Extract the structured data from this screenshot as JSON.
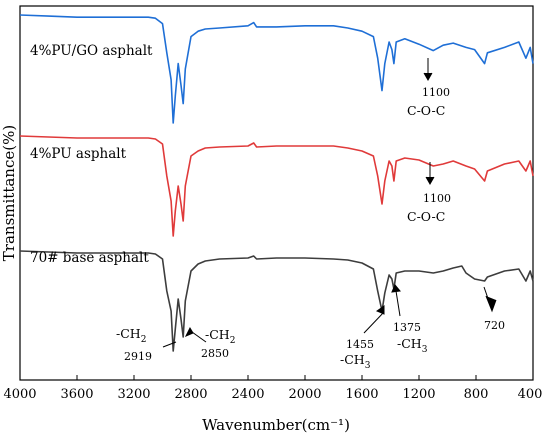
{
  "chart_data": {
    "type": "line",
    "xlabel": "Wavenumber(cm⁻¹)",
    "ylabel": "Transmittance(%)",
    "xlim": [
      4000,
      400
    ],
    "x_reversed": true,
    "x_ticks": [
      "4000",
      "3600",
      "3200",
      "2800",
      "2400",
      "2000",
      "1600",
      "1200",
      "800",
      "400"
    ],
    "y_ticks_visible": false,
    "grid": false,
    "legend": "none (labels placed on curves)",
    "series": [
      {
        "name": "4%PU/GO asphalt",
        "color": "#1f6fd6",
        "offset": 2,
        "points": [
          [
            4000,
            0.0
          ],
          [
            3800,
            0.01
          ],
          [
            3600,
            0.02
          ],
          [
            3400,
            0.02
          ],
          [
            3200,
            0.02
          ],
          [
            3100,
            0.02
          ],
          [
            3050,
            0.03
          ],
          [
            3000,
            0.08
          ],
          [
            2970,
            0.35
          ],
          [
            2940,
            0.6
          ],
          [
            2925,
            1.0
          ],
          [
            2910,
            0.75
          ],
          [
            2890,
            0.45
          ],
          [
            2870,
            0.65
          ],
          [
            2855,
            0.82
          ],
          [
            2840,
            0.5
          ],
          [
            2800,
            0.2
          ],
          [
            2750,
            0.15
          ],
          [
            2700,
            0.13
          ],
          [
            2600,
            0.12
          ],
          [
            2400,
            0.1
          ],
          [
            2360,
            0.07
          ],
          [
            2340,
            0.11
          ],
          [
            2200,
            0.11
          ],
          [
            2000,
            0.1
          ],
          [
            1800,
            0.1
          ],
          [
            1700,
            0.12
          ],
          [
            1600,
            0.15
          ],
          [
            1520,
            0.2
          ],
          [
            1490,
            0.4
          ],
          [
            1460,
            0.7
          ],
          [
            1440,
            0.45
          ],
          [
            1410,
            0.25
          ],
          [
            1390,
            0.32
          ],
          [
            1376,
            0.45
          ],
          [
            1360,
            0.25
          ],
          [
            1300,
            0.22
          ],
          [
            1200,
            0.27
          ],
          [
            1100,
            0.33
          ],
          [
            1030,
            0.28
          ],
          [
            960,
            0.26
          ],
          [
            870,
            0.3
          ],
          [
            810,
            0.32
          ],
          [
            740,
            0.45
          ],
          [
            720,
            0.35
          ],
          [
            600,
            0.3
          ],
          [
            500,
            0.25
          ],
          [
            450,
            0.4
          ],
          [
            420,
            0.3
          ],
          [
            400,
            0.45
          ]
        ]
      },
      {
        "name": "4%PU asphalt",
        "color": "#e03a3a",
        "offset": 1,
        "points": [
          [
            4000,
            0.0
          ],
          [
            3800,
            0.01
          ],
          [
            3600,
            0.02
          ],
          [
            3400,
            0.02
          ],
          [
            3200,
            0.02
          ],
          [
            3100,
            0.02
          ],
          [
            3050,
            0.03
          ],
          [
            3000,
            0.08
          ],
          [
            2970,
            0.4
          ],
          [
            2940,
            0.65
          ],
          [
            2925,
            1.0
          ],
          [
            2910,
            0.75
          ],
          [
            2890,
            0.5
          ],
          [
            2870,
            0.68
          ],
          [
            2855,
            0.85
          ],
          [
            2840,
            0.5
          ],
          [
            2800,
            0.2
          ],
          [
            2750,
            0.15
          ],
          [
            2700,
            0.12
          ],
          [
            2600,
            0.11
          ],
          [
            2400,
            0.1
          ],
          [
            2360,
            0.07
          ],
          [
            2340,
            0.11
          ],
          [
            2200,
            0.1
          ],
          [
            2000,
            0.1
          ],
          [
            1800,
            0.1
          ],
          [
            1700,
            0.12
          ],
          [
            1600,
            0.15
          ],
          [
            1520,
            0.2
          ],
          [
            1490,
            0.4
          ],
          [
            1460,
            0.68
          ],
          [
            1440,
            0.45
          ],
          [
            1410,
            0.25
          ],
          [
            1390,
            0.3
          ],
          [
            1376,
            0.45
          ],
          [
            1360,
            0.25
          ],
          [
            1300,
            0.22
          ],
          [
            1200,
            0.24
          ],
          [
            1100,
            0.3
          ],
          [
            1030,
            0.28
          ],
          [
            960,
            0.25
          ],
          [
            870,
            0.3
          ],
          [
            810,
            0.33
          ],
          [
            740,
            0.45
          ],
          [
            720,
            0.35
          ],
          [
            600,
            0.28
          ],
          [
            500,
            0.25
          ],
          [
            450,
            0.35
          ],
          [
            420,
            0.25
          ],
          [
            400,
            0.4
          ]
        ]
      },
      {
        "name": "70# base asphalt",
        "color": "#3d3d3d",
        "offset": 0,
        "points": [
          [
            4000,
            0.0
          ],
          [
            3800,
            0.01
          ],
          [
            3600,
            0.02
          ],
          [
            3400,
            0.02
          ],
          [
            3200,
            0.02
          ],
          [
            3100,
            0.02
          ],
          [
            3050,
            0.03
          ],
          [
            3000,
            0.08
          ],
          [
            2970,
            0.4
          ],
          [
            2940,
            0.6
          ],
          [
            2925,
            1.0
          ],
          [
            2910,
            0.78
          ],
          [
            2890,
            0.48
          ],
          [
            2870,
            0.68
          ],
          [
            2855,
            0.86
          ],
          [
            2840,
            0.5
          ],
          [
            2800,
            0.2
          ],
          [
            2750,
            0.13
          ],
          [
            2700,
            0.1
          ],
          [
            2600,
            0.08
          ],
          [
            2400,
            0.07
          ],
          [
            2360,
            0.05
          ],
          [
            2340,
            0.08
          ],
          [
            2200,
            0.07
          ],
          [
            2000,
            0.07
          ],
          [
            1800,
            0.08
          ],
          [
            1700,
            0.09
          ],
          [
            1600,
            0.12
          ],
          [
            1520,
            0.18
          ],
          [
            1490,
            0.4
          ],
          [
            1460,
            0.6
          ],
          [
            1440,
            0.42
          ],
          [
            1410,
            0.24
          ],
          [
            1390,
            0.28
          ],
          [
            1376,
            0.38
          ],
          [
            1360,
            0.22
          ],
          [
            1300,
            0.2
          ],
          [
            1200,
            0.2
          ],
          [
            1100,
            0.22
          ],
          [
            1030,
            0.2
          ],
          [
            960,
            0.17
          ],
          [
            900,
            0.15
          ],
          [
            870,
            0.22
          ],
          [
            810,
            0.28
          ],
          [
            740,
            0.3
          ],
          [
            720,
            0.26
          ],
          [
            600,
            0.2
          ],
          [
            500,
            0.18
          ],
          [
            450,
            0.3
          ],
          [
            420,
            0.2
          ],
          [
            400,
            0.3
          ]
        ]
      }
    ],
    "annotations": [
      {
        "id": "pugo-1100",
        "value": "1100",
        "label": "C-O-C",
        "series": "4%PU/GO asphalt"
      },
      {
        "id": "pu-1100",
        "value": "1100",
        "label": "C-O-C",
        "series": "4%PU asphalt"
      },
      {
        "id": "base-2919",
        "value": "2919",
        "label": "-CH2",
        "series": "70# base asphalt"
      },
      {
        "id": "base-2850",
        "value": "2850",
        "label": "-CH2",
        "series": "70# base asphalt"
      },
      {
        "id": "base-1455",
        "value": "1455",
        "label": "-CH3",
        "series": "70# base asphalt"
      },
      {
        "id": "base-1375",
        "value": "1375",
        "label": "-CH3",
        "series": "70# base asphalt"
      },
      {
        "id": "base-720",
        "value": "720",
        "label": "",
        "series": "70# base asphalt"
      }
    ]
  }
}
